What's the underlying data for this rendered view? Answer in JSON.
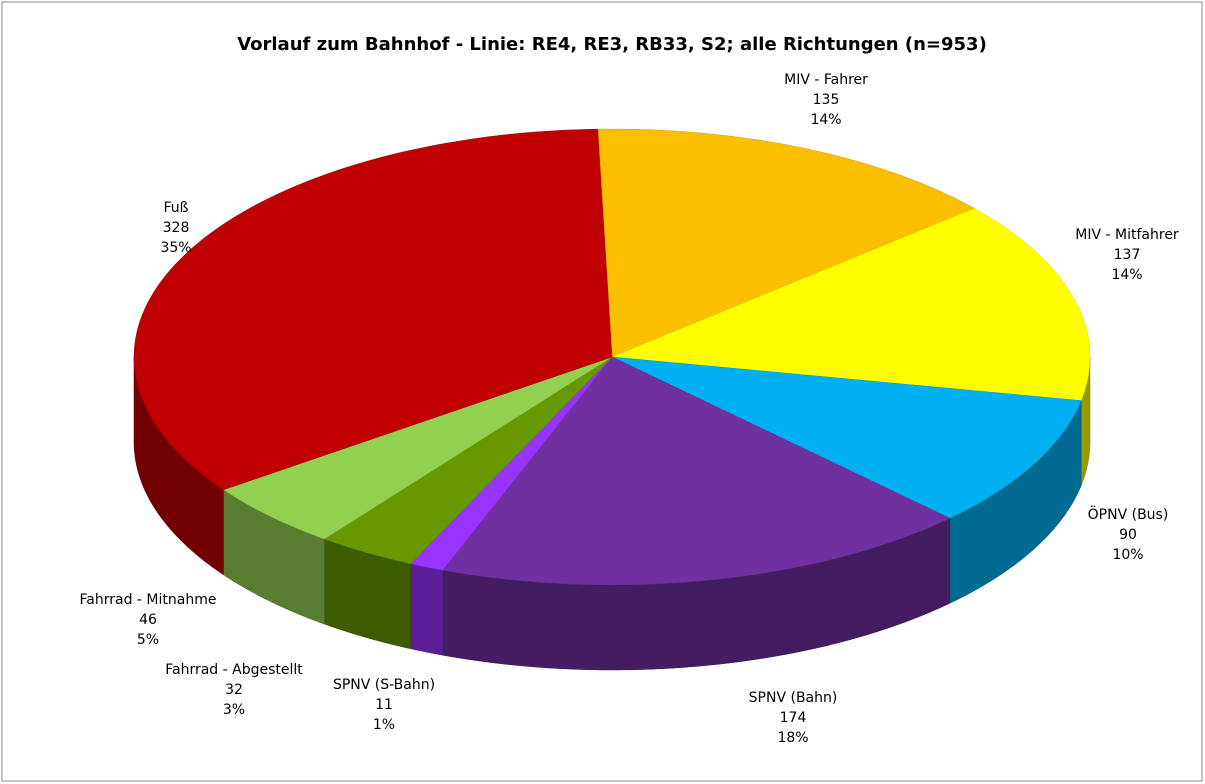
{
  "chart_data": {
    "type": "pie3d",
    "title": "Vorlauf zum Bahnhof - Linie: RE4, RE3, RB33, S2; alle Richtungen (n=953)",
    "categories": [
      "MIV - Fahrer",
      "MIV - Mitfahrer",
      "ÖPNV (Bus)",
      "SPNV (Bahn)",
      "SPNV (S-Bahn)",
      "Fahrrad - Abgestellt",
      "Fahrrad - Mitnahme",
      "Fuß"
    ],
    "values": [
      135,
      137,
      90,
      174,
      11,
      32,
      46,
      328
    ],
    "percent_labels": [
      "14%",
      "14%",
      "10%",
      "18%",
      "1%",
      "3%",
      "5%",
      "35%"
    ],
    "colors": [
      "#fbbf00",
      "#ffff00",
      "#00b0f0",
      "#7030a0",
      "#9933ff",
      "#669900",
      "#92d050",
      "#c00000"
    ]
  }
}
